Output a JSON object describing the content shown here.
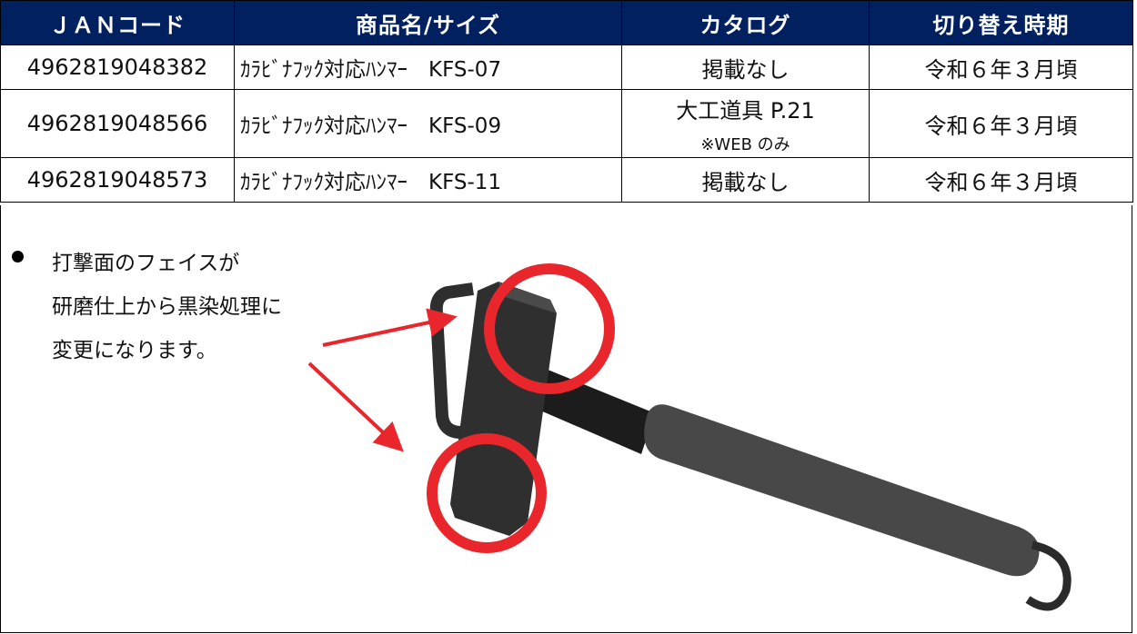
{
  "table": {
    "header": [
      "ＪＡＮコード",
      "商品名/サイズ",
      "カタログ",
      "切り替え時期"
    ],
    "rows": [
      [
        "4962819048382",
        "ｶﾗﾋﾞﾅﾌｯｸ対応ﾊﾝﾏｰ　KFS-07",
        "掲載なし",
        "令和６年３月頃"
      ],
      [
        "4962819048566",
        "ｶﾗﾋﾞﾅﾌｯｸ対応ﾊﾝﾏｰ　KFS-09",
        {
          "main": "大工道具 P.21",
          "sub": "※WEB のみ"
        },
        "令和６年３月頃"
      ],
      [
        "4962819048573",
        "ｶﾗﾋﾞﾅﾌｯｸ対応ﾊﾝﾏｰ　KFS-11",
        "掲載なし",
        "令和６年３月頃"
      ]
    ]
  },
  "note": {
    "lines": [
      "打撃面のフェイスが",
      "研磨仕上から黒染処理に",
      "変更になります。"
    ]
  }
}
